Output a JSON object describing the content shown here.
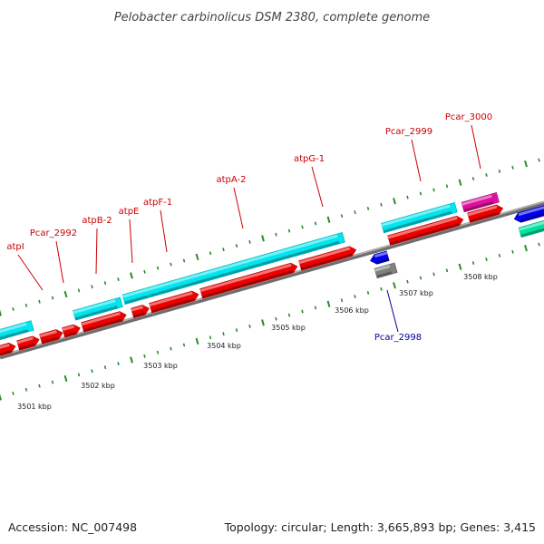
{
  "title": "Pelobacter carbinolicus DSM 2380, complete genome",
  "footer": {
    "accession": "Accession: NC_007498",
    "summary": "Topology: circular; Length: 3,665,893 bp; Genes: 3,415"
  },
  "colors": {
    "label_forward": "#cc0000",
    "label_reverse": "#000099",
    "backbone": "#8c8c8c",
    "cds": "#ee0000",
    "gene": "#00e5ee",
    "rna": "#e0109e",
    "other": "#808080",
    "reverse": "#0000ee",
    "misc": "#00e2a0",
    "tick": "#2a8a2a"
  },
  "labels": [
    {
      "text": "atpI",
      "strand": "forward"
    },
    {
      "text": "Pcar_2992",
      "strand": "forward"
    },
    {
      "text": "atpB-2",
      "strand": "forward"
    },
    {
      "text": "atpE",
      "strand": "forward"
    },
    {
      "text": "atpF-1",
      "strand": "forward"
    },
    {
      "text": "atpA-2",
      "strand": "forward"
    },
    {
      "text": "atpG-1",
      "strand": "forward"
    },
    {
      "text": "Pcar_2999",
      "strand": "forward"
    },
    {
      "text": "Pcar_3000",
      "strand": "forward"
    },
    {
      "text": "Pcar_2998",
      "strand": "reverse"
    }
  ],
  "kbp_labels": [
    "3501 kbp",
    "3502 kbp",
    "3503 kbp",
    "3504 kbp",
    "3505 kbp",
    "3506 kbp",
    "3507 kbp",
    "3508 kbp"
  ]
}
